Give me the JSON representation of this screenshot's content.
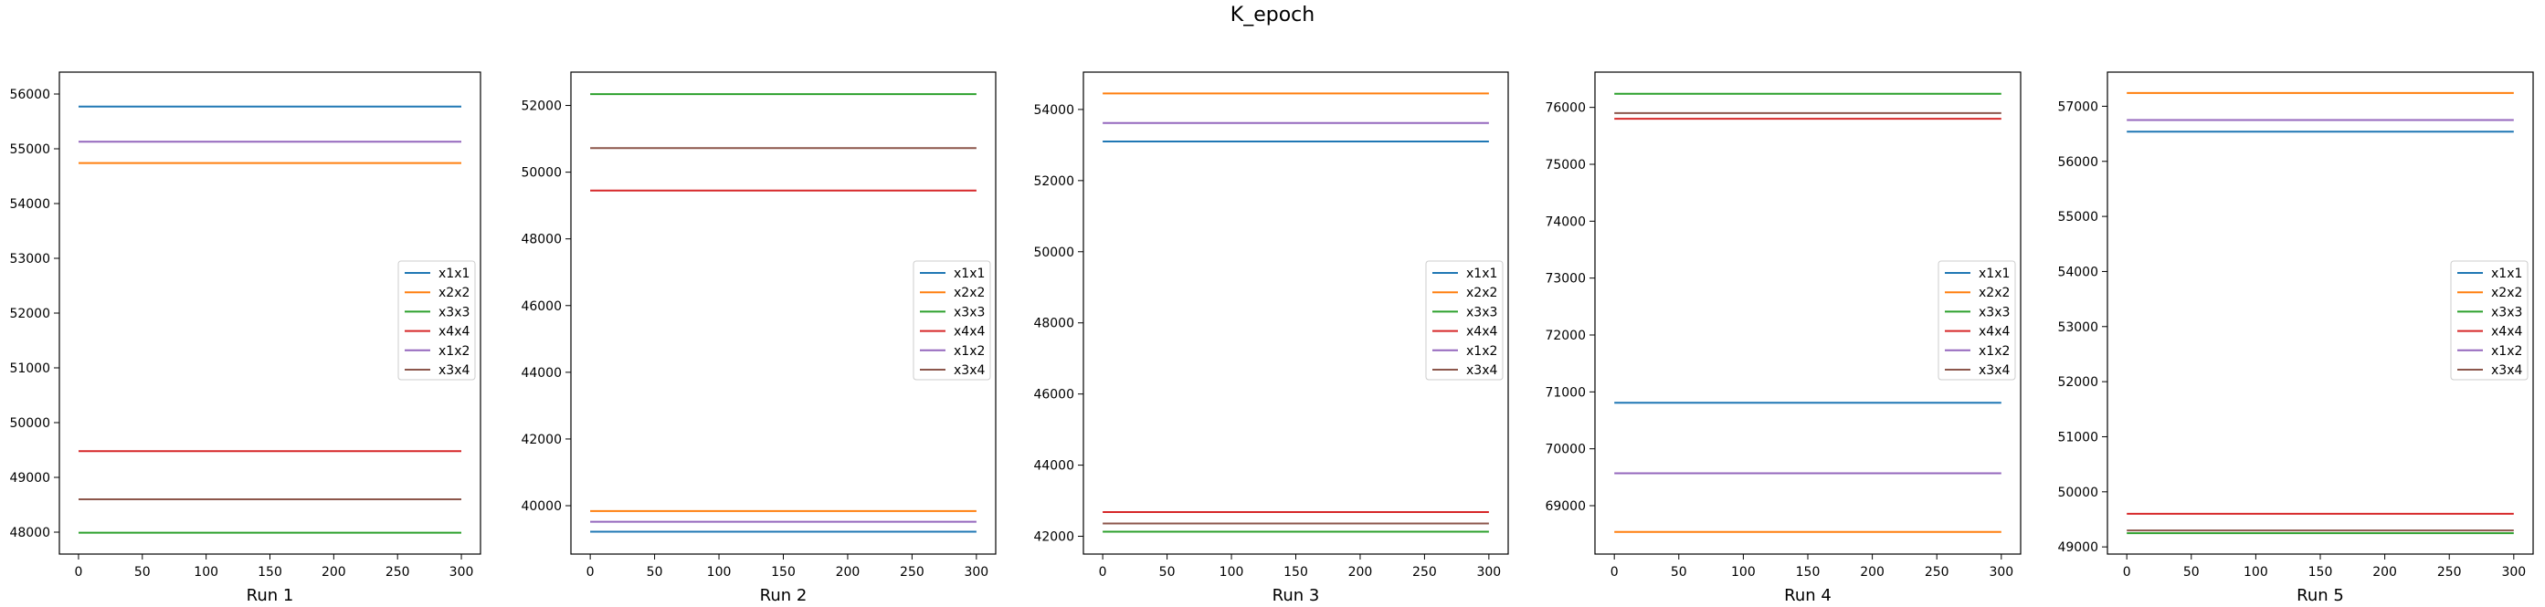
{
  "figure": {
    "title": "K_epoch"
  },
  "chart_data": [
    {
      "type": "line",
      "xlabel": "Run 1",
      "xlim": [
        -15,
        315
      ],
      "ylim": [
        47600,
        56400
      ],
      "xticks": [
        0,
        50,
        100,
        150,
        200,
        250,
        300
      ],
      "yticks": [
        48000,
        49000,
        50000,
        51000,
        52000,
        53000,
        54000,
        55000,
        56000
      ],
      "x": [
        0,
        300
      ],
      "legend": "center-right",
      "series": [
        {
          "name": "x1x1",
          "color": "#1f77b4",
          "values": [
            55770,
            55770
          ]
        },
        {
          "name": "x2x2",
          "color": "#ff7f0e",
          "values": [
            54740,
            54740
          ]
        },
        {
          "name": "x3x3",
          "color": "#2ca02c",
          "values": [
            47990,
            47990
          ]
        },
        {
          "name": "x4x4",
          "color": "#d62728",
          "values": [
            49480,
            49480
          ]
        },
        {
          "name": "x1x2",
          "color": "#9467bd",
          "values": [
            55130,
            55130
          ]
        },
        {
          "name": "x3x4",
          "color": "#8c564b",
          "values": [
            48600,
            48600
          ]
        }
      ]
    },
    {
      "type": "line",
      "xlabel": "Run 2",
      "xlim": [
        -15,
        315
      ],
      "ylim": [
        38550,
        53000
      ],
      "xticks": [
        0,
        50,
        100,
        150,
        200,
        250,
        300
      ],
      "yticks": [
        40000,
        42000,
        44000,
        46000,
        48000,
        50000,
        52000
      ],
      "x": [
        0,
        300
      ],
      "legend": "center-right",
      "series": [
        {
          "name": "x1x1",
          "color": "#1f77b4",
          "values": [
            39220,
            39220
          ]
        },
        {
          "name": "x2x2",
          "color": "#ff7f0e",
          "values": [
            39840,
            39840
          ]
        },
        {
          "name": "x3x3",
          "color": "#2ca02c",
          "values": [
            52340,
            52340
          ]
        },
        {
          "name": "x4x4",
          "color": "#d62728",
          "values": [
            49450,
            49450
          ]
        },
        {
          "name": "x1x2",
          "color": "#9467bd",
          "values": [
            39520,
            39520
          ]
        },
        {
          "name": "x3x4",
          "color": "#8c564b",
          "values": [
            50720,
            50720
          ]
        }
      ]
    },
    {
      "type": "line",
      "xlabel": "Run 3",
      "xlim": [
        -15,
        315
      ],
      "ylim": [
        41500,
        55050
      ],
      "xticks": [
        0,
        50,
        100,
        150,
        200,
        250,
        300
      ],
      "yticks": [
        42000,
        44000,
        46000,
        48000,
        50000,
        52000,
        54000
      ],
      "x": [
        0,
        300
      ],
      "legend": "center-right",
      "series": [
        {
          "name": "x1x1",
          "color": "#1f77b4",
          "values": [
            53100,
            53100
          ]
        },
        {
          "name": "x2x2",
          "color": "#ff7f0e",
          "values": [
            54450,
            54450
          ]
        },
        {
          "name": "x3x3",
          "color": "#2ca02c",
          "values": [
            42130,
            42130
          ]
        },
        {
          "name": "x4x4",
          "color": "#d62728",
          "values": [
            42680,
            42680
          ]
        },
        {
          "name": "x1x2",
          "color": "#9467bd",
          "values": [
            53620,
            53620
          ]
        },
        {
          "name": "x3x4",
          "color": "#8c564b",
          "values": [
            42360,
            42360
          ]
        }
      ]
    },
    {
      "type": "line",
      "xlabel": "Run 4",
      "xlim": [
        -15,
        315
      ],
      "ylim": [
        68150,
        76620
      ],
      "xticks": [
        0,
        50,
        100,
        150,
        200,
        250,
        300
      ],
      "yticks": [
        69000,
        70000,
        71000,
        72000,
        73000,
        74000,
        75000,
        76000
      ],
      "x": [
        0,
        300
      ],
      "legend": "center-right",
      "series": [
        {
          "name": "x1x1",
          "color": "#1f77b4",
          "values": [
            70810,
            70810
          ]
        },
        {
          "name": "x2x2",
          "color": "#ff7f0e",
          "values": [
            68540,
            68540
          ]
        },
        {
          "name": "x3x3",
          "color": "#2ca02c",
          "values": [
            76240,
            76240
          ]
        },
        {
          "name": "x4x4",
          "color": "#d62728",
          "values": [
            75800,
            75800
          ]
        },
        {
          "name": "x1x2",
          "color": "#9467bd",
          "values": [
            69570,
            69570
          ]
        },
        {
          "name": "x3x4",
          "color": "#8c564b",
          "values": [
            75900,
            75900
          ]
        }
      ]
    },
    {
      "type": "line",
      "xlabel": "Run 5",
      "xlim": [
        -15,
        315
      ],
      "ylim": [
        48870,
        57620
      ],
      "xticks": [
        0,
        50,
        100,
        150,
        200,
        250,
        300
      ],
      "yticks": [
        49000,
        50000,
        51000,
        52000,
        53000,
        54000,
        55000,
        56000,
        57000
      ],
      "x": [
        0,
        300
      ],
      "legend": "center-right",
      "series": [
        {
          "name": "x1x1",
          "color": "#1f77b4",
          "values": [
            56540,
            56540
          ]
        },
        {
          "name": "x2x2",
          "color": "#ff7f0e",
          "values": [
            57240,
            57240
          ]
        },
        {
          "name": "x3x3",
          "color": "#2ca02c",
          "values": [
            49250,
            49250
          ]
        },
        {
          "name": "x4x4",
          "color": "#d62728",
          "values": [
            49600,
            49600
          ]
        },
        {
          "name": "x1x2",
          "color": "#9467bd",
          "values": [
            56750,
            56750
          ]
        },
        {
          "name": "x3x4",
          "color": "#8c564b",
          "values": [
            49300,
            49300
          ]
        }
      ]
    }
  ]
}
